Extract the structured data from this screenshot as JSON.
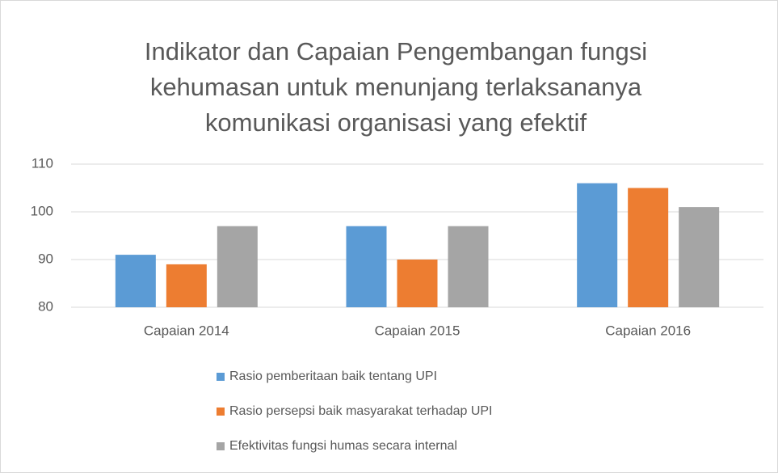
{
  "chart_data": {
    "type": "bar",
    "title": "Indikator dan Capaian Pengembangan fungsi kehumasan untuk menunjang terlaksananya komunikasi organisasi yang efektif",
    "categories": [
      "Capaian 2014",
      "Capaian 2015",
      "Capaian 2016"
    ],
    "series": [
      {
        "name": "Rasio pemberitaan baik tentang UPI",
        "color": "#5b9bd5",
        "values": [
          91,
          97,
          106
        ]
      },
      {
        "name": "Rasio persepsi baik masyarakat terhadap UPI",
        "color": "#ed7d31",
        "values": [
          89,
          90,
          105
        ]
      },
      {
        "name": "Efektivitas fungsi humas secara internal",
        "color": "#a5a5a5",
        "values": [
          97,
          97,
          101
        ]
      }
    ],
    "ylim": [
      80,
      110
    ],
    "yticks": [
      80,
      90,
      100,
      110
    ],
    "grid": true,
    "legend": "bottom"
  }
}
